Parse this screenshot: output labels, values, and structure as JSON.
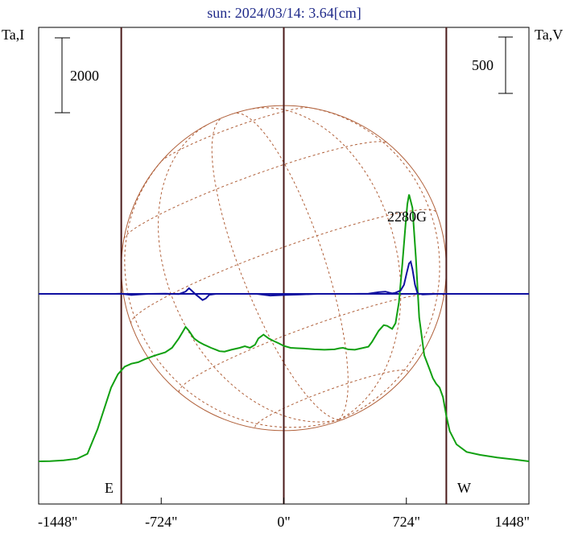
{
  "chart_data": {
    "type": "line",
    "title": "sun: 2024/03/14: 3.64[cm]",
    "left_axis_label": "Ta,I",
    "right_axis_label": "Ta,V",
    "left_scale_bar": "2000",
    "right_scale_bar": "500",
    "annotation": "2280G",
    "limb_labels": {
      "east": "E",
      "west": "W"
    },
    "x_tick_labels": [
      "-1448\"",
      "-724\"",
      "0\"",
      "724\"",
      "1448\""
    ],
    "x_ticks": [
      -1448,
      -724,
      0,
      724,
      1448
    ],
    "xlim": [
      -1448,
      1448
    ],
    "limb_x": [
      -960,
      960
    ],
    "solar_radius_arcsec": 960,
    "colors": {
      "stokes_i": "#11a011",
      "stokes_v": "#1010a0",
      "disk": "#b0603a",
      "limb_lines": "#4a1a1a",
      "title": "#1f2a8a"
    },
    "series": [
      {
        "name": "Ta,I",
        "points": [
          [
            -1448,
            0
          ],
          [
            -1380,
            5
          ],
          [
            -1300,
            25
          ],
          [
            -1220,
            70
          ],
          [
            -1160,
            200
          ],
          [
            -1100,
            850
          ],
          [
            -1060,
            1400
          ],
          [
            -1020,
            1950
          ],
          [
            -980,
            2300
          ],
          [
            -940,
            2500
          ],
          [
            -900,
            2580
          ],
          [
            -860,
            2620
          ],
          [
            -820,
            2700
          ],
          [
            -760,
            2800
          ],
          [
            -700,
            2880
          ],
          [
            -660,
            3000
          ],
          [
            -620,
            3250
          ],
          [
            -600,
            3400
          ],
          [
            -580,
            3550
          ],
          [
            -560,
            3450
          ],
          [
            -530,
            3250
          ],
          [
            -500,
            3150
          ],
          [
            -470,
            3080
          ],
          [
            -430,
            3000
          ],
          [
            -400,
            2950
          ],
          [
            -380,
            2910
          ],
          [
            -350,
            2900
          ],
          [
            -310,
            2950
          ],
          [
            -260,
            3000
          ],
          [
            -230,
            3040
          ],
          [
            -200,
            3000
          ],
          [
            -170,
            3080
          ],
          [
            -150,
            3250
          ],
          [
            -120,
            3350
          ],
          [
            -90,
            3250
          ],
          [
            -60,
            3180
          ],
          [
            -30,
            3120
          ],
          [
            0,
            3050
          ],
          [
            40,
            3000
          ],
          [
            80,
            2990
          ],
          [
            120,
            2980
          ],
          [
            180,
            2960
          ],
          [
            240,
            2950
          ],
          [
            300,
            2960
          ],
          [
            330,
            2990
          ],
          [
            350,
            3000
          ],
          [
            380,
            2960
          ],
          [
            420,
            2950
          ],
          [
            460,
            2990
          ],
          [
            500,
            3030
          ],
          [
            520,
            3150
          ],
          [
            560,
            3450
          ],
          [
            590,
            3600
          ],
          [
            610,
            3580
          ],
          [
            640,
            3500
          ],
          [
            660,
            3650
          ],
          [
            680,
            4200
          ],
          [
            700,
            5200
          ],
          [
            720,
            6300
          ],
          [
            730,
            6800
          ],
          [
            740,
            7050
          ],
          [
            760,
            6700
          ],
          [
            780,
            5400
          ],
          [
            800,
            3800
          ],
          [
            830,
            2800
          ],
          [
            860,
            2450
          ],
          [
            880,
            2200
          ],
          [
            900,
            2050
          ],
          [
            920,
            1950
          ],
          [
            940,
            1700
          ],
          [
            960,
            1200
          ],
          [
            980,
            800
          ],
          [
            1020,
            450
          ],
          [
            1080,
            250
          ],
          [
            1160,
            170
          ],
          [
            1260,
            100
          ],
          [
            1360,
            50
          ],
          [
            1448,
            0
          ]
        ]
      },
      {
        "name": "Ta,V",
        "points": [
          [
            -1448,
            0
          ],
          [
            -1000,
            0
          ],
          [
            -960,
            2
          ],
          [
            -900,
            -10
          ],
          [
            -860,
            -5
          ],
          [
            -800,
            0
          ],
          [
            -700,
            2
          ],
          [
            -620,
            -2
          ],
          [
            -580,
            20
          ],
          [
            -560,
            50
          ],
          [
            -545,
            30
          ],
          [
            -520,
            -5
          ],
          [
            -500,
            -30
          ],
          [
            -480,
            -55
          ],
          [
            -460,
            -40
          ],
          [
            -440,
            -8
          ],
          [
            -400,
            0
          ],
          [
            -300,
            0
          ],
          [
            -160,
            0
          ],
          [
            -80,
            -15
          ],
          [
            0,
            -10
          ],
          [
            100,
            -5
          ],
          [
            200,
            0
          ],
          [
            300,
            0
          ],
          [
            400,
            0
          ],
          [
            500,
            2
          ],
          [
            560,
            15
          ],
          [
            600,
            20
          ],
          [
            620,
            12
          ],
          [
            640,
            5
          ],
          [
            660,
            10
          ],
          [
            690,
            30
          ],
          [
            710,
            80
          ],
          [
            725,
            180
          ],
          [
            740,
            270
          ],
          [
            750,
            285
          ],
          [
            760,
            220
          ],
          [
            775,
            80
          ],
          [
            790,
            5
          ],
          [
            820,
            -5
          ],
          [
            900,
            0
          ],
          [
            960,
            0
          ],
          [
            1448,
            0
          ]
        ]
      }
    ],
    "grid": false
  }
}
